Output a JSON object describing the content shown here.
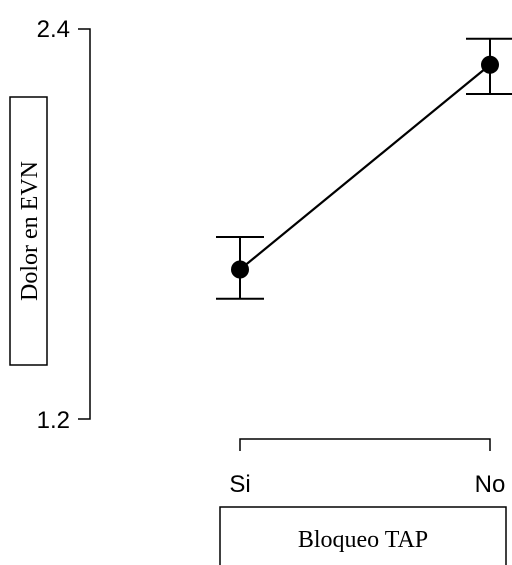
{
  "chart_data": {
    "type": "line",
    "categories": [
      "Si",
      "No"
    ],
    "values": [
      1.66,
      2.29
    ],
    "error_low": [
      1.57,
      2.2
    ],
    "error_high": [
      1.76,
      2.37
    ],
    "ylabel": "Dolor en EVN",
    "xlabel": "Bloqueo TAP",
    "ylim": [
      1.2,
      2.4
    ],
    "yticks": [
      "1.2",
      "2.4"
    ],
    "grid": false,
    "legend": "none"
  }
}
